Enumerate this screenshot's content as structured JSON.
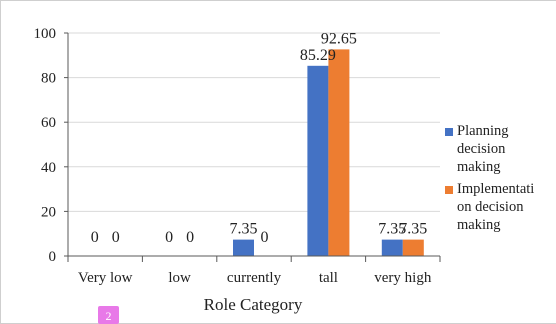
{
  "chart_data": {
    "type": "bar",
    "title": "",
    "xlabel": "Role Category",
    "ylabel": "",
    "ylim": [
      0,
      100
    ],
    "yticks": [
      0,
      20,
      40,
      60,
      80,
      100
    ],
    "categories": [
      "Very low",
      "low",
      "currently",
      "tall",
      "very high"
    ],
    "series": [
      {
        "name": "Planning decision making",
        "name_lines": [
          "Planning",
          "decision",
          "making"
        ],
        "color": "#4472C4",
        "values": [
          0,
          0,
          7.35,
          85.29,
          7.35
        ]
      },
      {
        "name": "Implementation decision making",
        "name_lines": [
          "Implementati",
          "on decision",
          "making"
        ],
        "color": "#ED7D31",
        "values": [
          0,
          0,
          0,
          92.65,
          7.35
        ]
      }
    ],
    "data_labels": [
      [
        "0",
        "0",
        "7.35",
        "85.29",
        "7.35"
      ],
      [
        "0",
        "0",
        "0",
        "92.65",
        "7.35"
      ]
    ],
    "grid": "horizontal",
    "legend_position": "right"
  },
  "page_badge": {
    "text": "2",
    "color": "#E879E8"
  }
}
